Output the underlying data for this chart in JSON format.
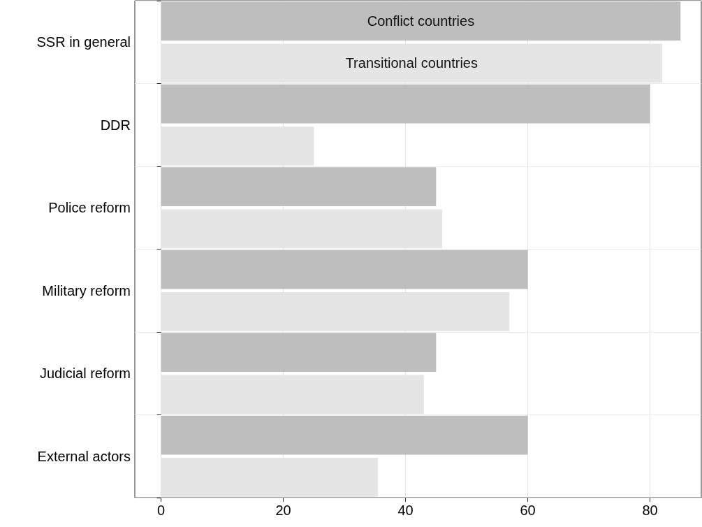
{
  "chart_data": {
    "type": "bar",
    "orientation": "horizontal",
    "categories": [
      "SSR in general",
      "DDR",
      "Police reform",
      "Military reform",
      "Judicial reform",
      "External actors"
    ],
    "series": [
      {
        "name": "Conflict countries",
        "color": "#bebebe",
        "values": [
          85,
          80,
          45,
          60,
          45,
          60
        ]
      },
      {
        "name": "Transitional countries",
        "color": "#e5e5e5",
        "values": [
          82,
          25,
          46,
          57,
          43,
          35.5
        ]
      }
    ],
    "xlim": [
      -4.3,
      88.4
    ],
    "xticks": [
      0,
      20,
      40,
      60,
      80
    ],
    "grid": true
  }
}
